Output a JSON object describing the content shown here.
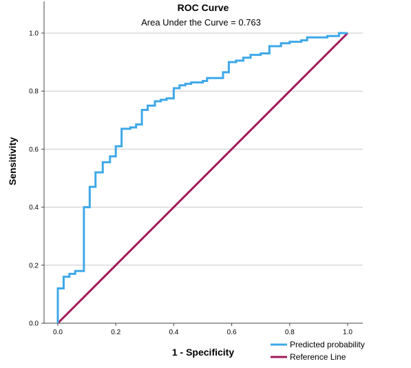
{
  "chart_data": {
    "type": "line",
    "title": "ROC Curve",
    "subtitle": "Area Under the Curve = 0.763",
    "xlabel": "1 - Specificity",
    "ylabel": "Sensitivity",
    "xlim": [
      0,
      1
    ],
    "ylim": [
      0,
      1
    ],
    "x_ticks": [
      "0.0",
      "0.2",
      "0.4",
      "0.6",
      "0.8",
      "1.0"
    ],
    "y_ticks": [
      "0.0",
      "0.2",
      "0.4",
      "0.6",
      "0.8",
      "1.0"
    ],
    "grid": "horizontal",
    "legend_position": "bottom-right",
    "series": [
      {
        "name": "Predicted probability",
        "color": "#3EA8E8",
        "step": true,
        "points": [
          [
            0.0,
            0.0
          ],
          [
            0.0,
            0.12
          ],
          [
            0.02,
            0.12
          ],
          [
            0.02,
            0.16
          ],
          [
            0.04,
            0.16
          ],
          [
            0.04,
            0.17
          ],
          [
            0.06,
            0.17
          ],
          [
            0.06,
            0.18
          ],
          [
            0.09,
            0.18
          ],
          [
            0.09,
            0.4
          ],
          [
            0.11,
            0.4
          ],
          [
            0.11,
            0.47
          ],
          [
            0.13,
            0.47
          ],
          [
            0.13,
            0.52
          ],
          [
            0.155,
            0.52
          ],
          [
            0.155,
            0.555
          ],
          [
            0.18,
            0.555
          ],
          [
            0.18,
            0.575
          ],
          [
            0.2,
            0.575
          ],
          [
            0.2,
            0.61
          ],
          [
            0.22,
            0.61
          ],
          [
            0.22,
            0.67
          ],
          [
            0.25,
            0.67
          ],
          [
            0.25,
            0.675
          ],
          [
            0.27,
            0.675
          ],
          [
            0.27,
            0.685
          ],
          [
            0.29,
            0.685
          ],
          [
            0.29,
            0.735
          ],
          [
            0.31,
            0.735
          ],
          [
            0.31,
            0.75
          ],
          [
            0.335,
            0.75
          ],
          [
            0.335,
            0.765
          ],
          [
            0.355,
            0.765
          ],
          [
            0.355,
            0.77
          ],
          [
            0.375,
            0.77
          ],
          [
            0.375,
            0.775
          ],
          [
            0.4,
            0.775
          ],
          [
            0.4,
            0.81
          ],
          [
            0.42,
            0.81
          ],
          [
            0.42,
            0.82
          ],
          [
            0.44,
            0.82
          ],
          [
            0.44,
            0.825
          ],
          [
            0.46,
            0.825
          ],
          [
            0.46,
            0.83
          ],
          [
            0.5,
            0.83
          ],
          [
            0.5,
            0.835
          ],
          [
            0.515,
            0.835
          ],
          [
            0.515,
            0.845
          ],
          [
            0.57,
            0.845
          ],
          [
            0.57,
            0.865
          ],
          [
            0.59,
            0.865
          ],
          [
            0.59,
            0.9
          ],
          [
            0.615,
            0.9
          ],
          [
            0.615,
            0.905
          ],
          [
            0.64,
            0.905
          ],
          [
            0.64,
            0.915
          ],
          [
            0.665,
            0.915
          ],
          [
            0.665,
            0.925
          ],
          [
            0.7,
            0.925
          ],
          [
            0.7,
            0.93
          ],
          [
            0.73,
            0.93
          ],
          [
            0.73,
            0.955
          ],
          [
            0.77,
            0.955
          ],
          [
            0.77,
            0.965
          ],
          [
            0.8,
            0.965
          ],
          [
            0.8,
            0.97
          ],
          [
            0.84,
            0.97
          ],
          [
            0.84,
            0.975
          ],
          [
            0.86,
            0.975
          ],
          [
            0.86,
            0.985
          ],
          [
            0.93,
            0.985
          ],
          [
            0.93,
            0.99
          ],
          [
            0.97,
            0.99
          ],
          [
            0.97,
            1.0
          ],
          [
            1.0,
            1.0
          ]
        ]
      },
      {
        "name": "Reference Line",
        "color": "#A0195A",
        "step": false,
        "points": [
          [
            0.0,
            0.0
          ],
          [
            1.0,
            1.0
          ]
        ]
      }
    ]
  },
  "colors": {
    "background": "#ffffff",
    "gridline": "#C8C8C8",
    "axis": "#444444"
  }
}
